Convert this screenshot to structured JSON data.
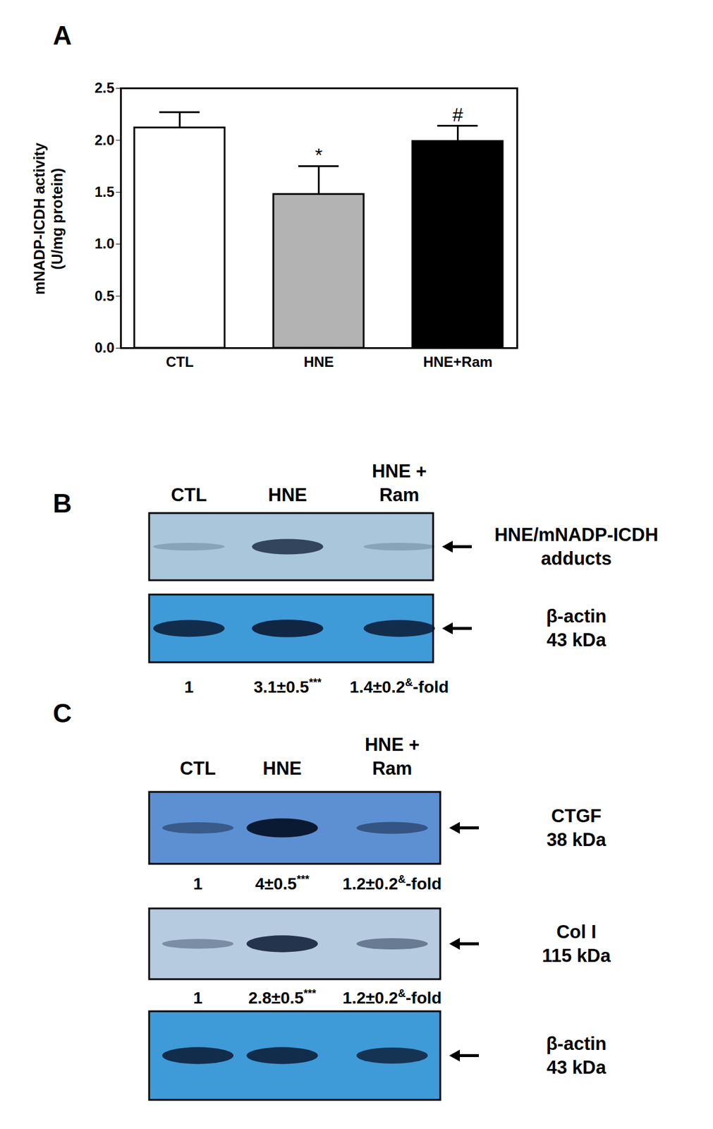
{
  "chart_data": [
    {
      "type": "bar",
      "panel": "A",
      "categories": [
        "CTL",
        "HNE",
        "HNE+Ram"
      ],
      "values": [
        2.12,
        1.48,
        1.99
      ],
      "errors": [
        0.15,
        0.27,
        0.15
      ],
      "significance": [
        null,
        "*",
        "#"
      ],
      "colors": [
        "#ffffff",
        "#b3b3b3",
        "#000000"
      ],
      "y_label": [
        "mNADP-ICDH activity",
        "(U/mg protein)"
      ],
      "ylim": [
        0,
        2.5
      ],
      "yticks": [
        {
          "value": 0,
          "label": "0.0"
        },
        {
          "value": 0.5,
          "label": "0.5"
        },
        {
          "value": 1,
          "label": "1.0"
        },
        {
          "value": 1.5,
          "label": "1.5"
        },
        {
          "value": 2,
          "label": "2.0"
        },
        {
          "value": 2.5,
          "label": "2.5"
        }
      ]
    },
    {
      "type": "blot",
      "panel": "B",
      "lanes": [
        [
          "CTL"
        ],
        [
          "HNE"
        ],
        [
          "HNE +",
          "Ram"
        ]
      ],
      "blots": [
        {
          "label": [
            "HNE/mNADP-ICDH",
            "adducts"
          ],
          "color": "#a9c6da",
          "intensities": [
            0.2,
            0.75,
            0.2
          ]
        },
        {
          "label": [
            "β-actin",
            "43 kDa"
          ],
          "color": "#3f9ad8",
          "intensities": [
            0.85,
            0.9,
            0.85
          ],
          "fold": [
            {
              "text": "1"
            },
            {
              "text": "3.1±0.5",
              "sup": "***"
            },
            {
              "text": "1.4±0.2",
              "sup": "&",
              "suffix": "-fold"
            }
          ]
        }
      ]
    },
    {
      "type": "blot",
      "panel": "C",
      "lanes": [
        [
          "CTL"
        ],
        [
          "HNE"
        ],
        [
          "HNE +",
          "Ram"
        ]
      ],
      "blots": [
        {
          "label": [
            "CTGF",
            "38 kDa"
          ],
          "color": "#5d90d2",
          "intensities": [
            0.45,
            1.0,
            0.5
          ],
          "fold": [
            {
              "text": "1"
            },
            {
              "text": "4±0.5",
              "sup": "***"
            },
            {
              "text": "1.2±0.2",
              "sup": "&",
              "suffix": "-fold"
            }
          ]
        },
        {
          "label": [
            "Col I",
            "115 kDa"
          ],
          "color": "#b6cbe0",
          "intensities": [
            0.35,
            0.85,
            0.45
          ],
          "fold": [
            {
              "text": "1"
            },
            {
              "text": "2.8±0.5",
              "sup": "***"
            },
            {
              "text": "1.2±0.2",
              "sup": "&",
              "suffix": "-fold"
            }
          ]
        },
        {
          "label": [
            "β-actin",
            "43 kDa"
          ],
          "color": "#3f9ad8",
          "intensities": [
            0.85,
            0.85,
            0.8
          ]
        }
      ]
    }
  ]
}
